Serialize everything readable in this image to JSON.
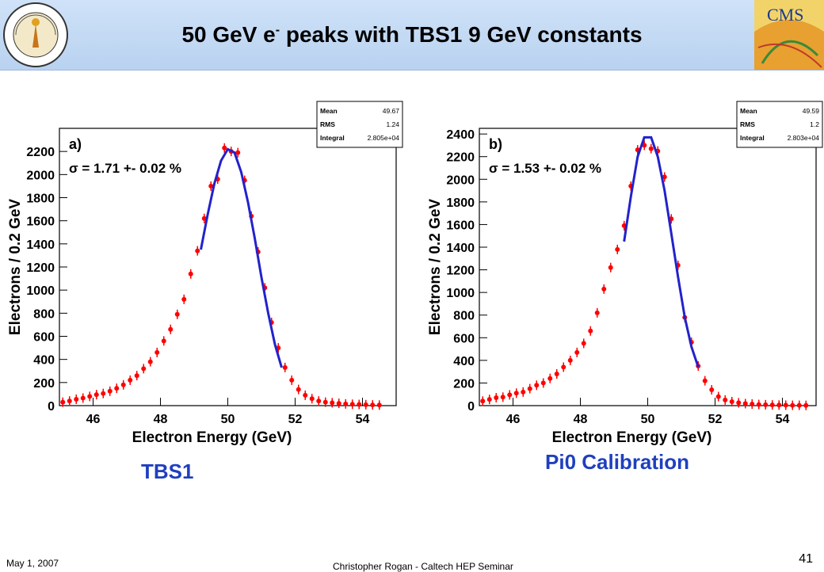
{
  "header": {
    "title_main": "50 GeV e",
    "title_sup": "-",
    "title_rest": " peaks with TBS1 9 GeV constants"
  },
  "logos": {
    "left": "caltech-seal-icon",
    "right": "cms-logo-icon",
    "cms_text": "CMS"
  },
  "chart_data": [
    {
      "type": "scatter",
      "panel_label": "a)",
      "annotation": "σ = 1.71 +- 0.02 %",
      "xlabel": "Electron Energy (GeV)",
      "ylabel": "Electrons / 0.2 GeV",
      "xlim": [
        45,
        55
      ],
      "ylim": [
        0,
        2400
      ],
      "xticks": [
        46,
        48,
        50,
        52,
        54
      ],
      "yticks": [
        0,
        200,
        400,
        600,
        800,
        1000,
        1200,
        1400,
        1600,
        1800,
        2000,
        2200
      ],
      "stats": {
        "mean_label": "Mean",
        "mean": "49.67",
        "rms_label": "RMS",
        "rms": "1.24",
        "integral_label": "Integral",
        "integral": "2.805e+04"
      },
      "series": [
        {
          "type": "scatter",
          "color": "#ff0000",
          "x": [
            45.1,
            45.3,
            45.5,
            45.7,
            45.9,
            46.1,
            46.3,
            46.5,
            46.7,
            46.9,
            47.1,
            47.3,
            47.5,
            47.7,
            47.9,
            48.1,
            48.3,
            48.5,
            48.7,
            48.9,
            49.1,
            49.3,
            49.5,
            49.7,
            49.9,
            50.1,
            50.3,
            50.5,
            50.7,
            50.9,
            51.1,
            51.3,
            51.5,
            51.7,
            51.9,
            52.1,
            52.3,
            52.5,
            52.7,
            52.9,
            53.1,
            53.3,
            53.5,
            53.7,
            53.9,
            54.1,
            54.3,
            54.5
          ],
          "y": [
            30,
            40,
            55,
            65,
            80,
            95,
            105,
            125,
            150,
            180,
            220,
            260,
            320,
            380,
            460,
            560,
            660,
            790,
            920,
            1140,
            1340,
            1620,
            1900,
            1960,
            2230,
            2200,
            2190,
            1950,
            1640,
            1330,
            1020,
            720,
            500,
            330,
            220,
            140,
            90,
            60,
            40,
            30,
            25,
            20,
            15,
            12,
            10,
            8,
            6,
            5
          ]
        },
        {
          "type": "line",
          "color": "#2222cc",
          "name": "",
          "x": [
            49.2,
            49.4,
            49.6,
            49.8,
            50.0,
            50.2,
            50.4,
            50.6,
            50.8,
            51.0,
            51.2,
            51.4,
            51.6
          ],
          "y": [
            1350,
            1650,
            1920,
            2120,
            2220,
            2190,
            2020,
            1760,
            1450,
            1110,
            800,
            530,
            330
          ]
        }
      ]
    },
    {
      "type": "scatter",
      "panel_label": "b)",
      "annotation": "σ = 1.53 +- 0.02 %",
      "xlabel": "Electron Energy (GeV)",
      "ylabel": "Electrons / 0.2 GeV",
      "xlim": [
        45,
        55
      ],
      "ylim": [
        0,
        2450
      ],
      "xticks": [
        46,
        48,
        50,
        52,
        54
      ],
      "yticks": [
        0,
        200,
        400,
        600,
        800,
        1000,
        1200,
        1400,
        1600,
        1800,
        2000,
        2200,
        2400
      ],
      "stats": {
        "mean_label": "Mean",
        "mean": "49.59",
        "rms_label": "RMS",
        "rms": "1.2",
        "integral_label": "Integral",
        "integral": "2.803e+04"
      },
      "series": [
        {
          "type": "scatter",
          "color": "#ff0000",
          "x": [
            45.1,
            45.3,
            45.5,
            45.7,
            45.9,
            46.1,
            46.3,
            46.5,
            46.7,
            46.9,
            47.1,
            47.3,
            47.5,
            47.7,
            47.9,
            48.1,
            48.3,
            48.5,
            48.7,
            48.9,
            49.1,
            49.3,
            49.5,
            49.7,
            49.9,
            50.1,
            50.3,
            50.5,
            50.7,
            50.9,
            51.1,
            51.3,
            51.5,
            51.7,
            51.9,
            52.1,
            52.3,
            52.5,
            52.7,
            52.9,
            53.1,
            53.3,
            53.5,
            53.7,
            53.9,
            54.1,
            54.3,
            54.5,
            54.7
          ],
          "y": [
            40,
            55,
            70,
            75,
            95,
            110,
            120,
            150,
            180,
            200,
            240,
            280,
            340,
            400,
            470,
            550,
            660,
            820,
            1030,
            1220,
            1380,
            1590,
            1940,
            2260,
            2300,
            2270,
            2250,
            2020,
            1650,
            1240,
            780,
            560,
            350,
            220,
            140,
            80,
            50,
            35,
            25,
            18,
            14,
            10,
            8,
            6,
            5,
            4,
            3,
            3,
            2
          ]
        },
        {
          "type": "line",
          "color": "#2222cc",
          "name": "",
          "x": [
            49.3,
            49.5,
            49.7,
            49.9,
            50.1,
            50.3,
            50.5,
            50.7,
            50.9,
            51.1,
            51.3,
            51.5
          ],
          "y": [
            1450,
            1850,
            2200,
            2370,
            2370,
            2200,
            1900,
            1520,
            1140,
            780,
            520,
            340
          ]
        }
      ]
    }
  ],
  "captions": {
    "a": "TBS1",
    "b": "Pi0 Calibration"
  },
  "footer": {
    "date": "May 1, 2007",
    "author": "Christopher Rogan - Caltech HEP Seminar",
    "page": "41"
  }
}
